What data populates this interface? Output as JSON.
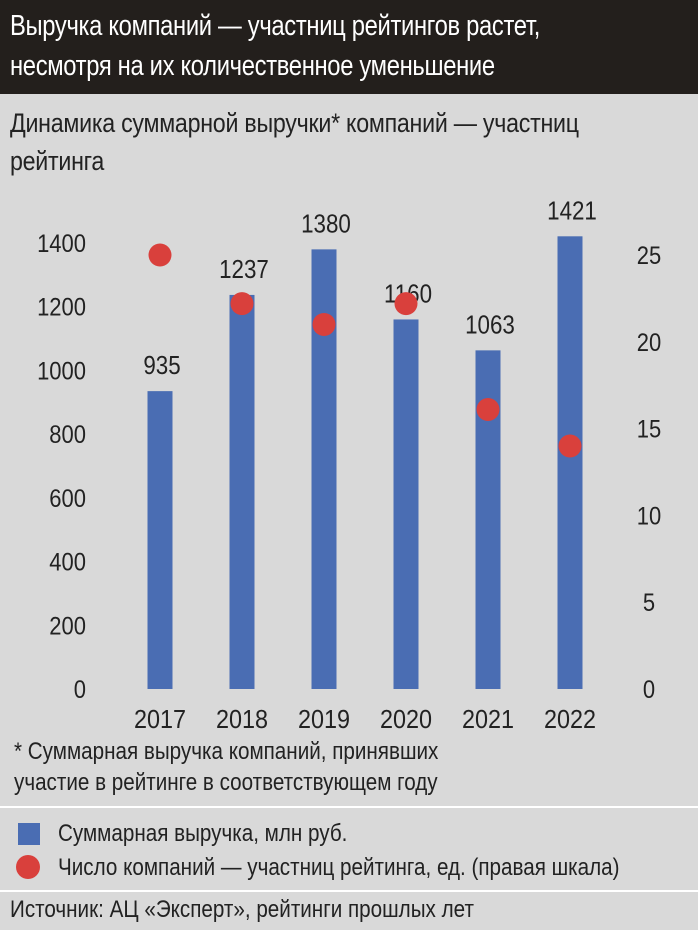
{
  "header": {
    "title_line1": "Выручка компаний — участниц рейтингов растет,",
    "title_line2": "несмотря на их количественное уменьшение"
  },
  "subtitle": {
    "line1": "Динамика суммарной выручки* компаний — участниц",
    "line2": "рейтинга"
  },
  "footnote": {
    "line1": "* Суммарная выручка компаний, принявших",
    "line2": "участие в рейтинге в соответствующем году"
  },
  "legend": {
    "bars": "Суммарная выручка, млн руб.",
    "dots": "Число компаний — участниц рейтинга, ед. (правая шкала)"
  },
  "source": "Источник: АЦ «Эксперт», рейтинги прошлых лет",
  "colors": {
    "bar": "#4a6db3",
    "dot": "#d9403c",
    "header_bg": "#231f1c",
    "background": "#d9d9d9"
  },
  "chart_data": {
    "type": "bar",
    "categories": [
      "2017",
      "2018",
      "2019",
      "2020",
      "2021",
      "2022"
    ],
    "series": [
      {
        "name": "Суммарная выручка, млн руб.",
        "type": "bar",
        "axis": "left",
        "values": [
          935,
          1237,
          1380,
          1160,
          1063,
          1421
        ],
        "data_labels": [
          "935",
          "1237",
          "1380",
          "1160",
          "1063",
          "1421"
        ]
      },
      {
        "name": "Число компаний — участниц рейтинга, ед. (правая шкала)",
        "type": "scatter",
        "axis": "right",
        "values": [
          25,
          22.2,
          21,
          22.2,
          16.1,
          14
        ]
      }
    ],
    "y_left": {
      "ticks": [
        "0",
        "200",
        "400",
        "600",
        "800",
        "1000",
        "1200",
        "1400"
      ],
      "ylim": [
        0,
        1400
      ]
    },
    "y_right": {
      "ticks": [
        "0",
        "5",
        "10",
        "15",
        "20",
        "25"
      ],
      "ylim": [
        0,
        26.3
      ]
    },
    "grid": false,
    "legend_position": "bottom"
  }
}
